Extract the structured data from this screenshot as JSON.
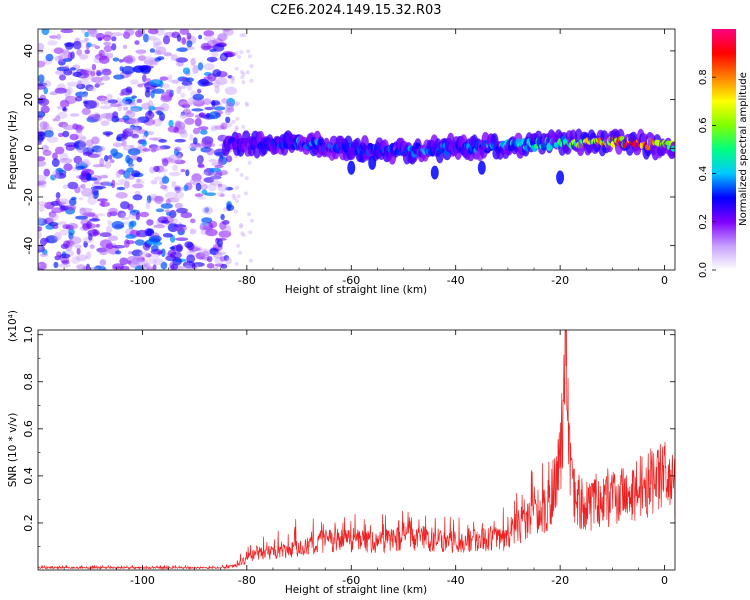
{
  "title": "C2E6.2024.149.15.32.R03",
  "chart_data": [
    {
      "type": "heatmap",
      "xlabel": "Height of straight line (km)",
      "ylabel": "Frequency (Hz)",
      "xlim": [
        -120,
        2
      ],
      "ylim": [
        -50,
        49
      ],
      "xticks": [
        -100,
        -80,
        -60,
        -40,
        -20,
        0
      ],
      "yticks": [
        -40,
        -20,
        0,
        20,
        40
      ],
      "colorbar": {
        "label": "Normalized spectral amplitude",
        "range": [
          0,
          1
        ],
        "ticks": [
          "0.0",
          "0.2",
          "0.4",
          "0.6",
          "0.8"
        ],
        "colors": [
          "#ffffff",
          "#c8a0ff",
          "#8000ff",
          "#0000ff",
          "#00c8ff",
          "#00ff80",
          "#80ff00",
          "#ffff00",
          "#ff8000",
          "#ff0000",
          "#ff0080"
        ]
      },
      "noise_region_x": [
        -120,
        -83
      ],
      "signal_band": {
        "x_range": [
          -84,
          2
        ],
        "center_frequency_hz": [
          {
            "x": -84,
            "f": 2
          },
          {
            "x": -70,
            "f": 2
          },
          {
            "x": -60,
            "f": 0
          },
          {
            "x": -50,
            "f": -1
          },
          {
            "x": -40,
            "f": 0
          },
          {
            "x": -30,
            "f": 1
          },
          {
            "x": -20,
            "f": 2
          },
          {
            "x": -10,
            "f": 3
          },
          {
            "x": 0,
            "f": 1
          }
        ],
        "peak_amplitude": [
          {
            "x": -84,
            "a": 0.25
          },
          {
            "x": -70,
            "a": 0.4
          },
          {
            "x": -60,
            "a": 0.35
          },
          {
            "x": -50,
            "a": 0.4
          },
          {
            "x": -40,
            "a": 0.4
          },
          {
            "x": -30,
            "a": 0.45
          },
          {
            "x": -20,
            "a": 0.55
          },
          {
            "x": -10,
            "a": 0.95
          },
          {
            "x": -3,
            "a": 1.0
          },
          {
            "x": 2,
            "a": 0.6
          }
        ]
      }
    },
    {
      "type": "line",
      "xlabel": "Height of straight line (km)",
      "ylabel": "SNR (10 * v/v)",
      "y_multiplier": "(x10⁴)",
      "xlim": [
        -120,
        2
      ],
      "ylim": [
        0,
        1.02
      ],
      "xticks": [
        -100,
        -80,
        -60,
        -40,
        -20,
        0
      ],
      "yticks": [
        0.2,
        0.4,
        0.6,
        0.8,
        1.0
      ],
      "color": "#ee2222",
      "series": [
        {
          "x": [
            -120,
            -110,
            -100,
            -90,
            -85,
            -82,
            -80,
            -78,
            -75,
            -70,
            -65,
            -60,
            -55,
            -50,
            -45,
            -40,
            -35,
            -30,
            -28,
            -25,
            -22,
            -21,
            -20,
            -19.5,
            -19,
            -18.5,
            -18,
            -17,
            -15,
            -12,
            -10,
            -8,
            -5,
            -3,
            0,
            2
          ],
          "y": [
            0.01,
            0.01,
            0.01,
            0.01,
            0.01,
            0.02,
            0.05,
            0.08,
            0.08,
            0.1,
            0.13,
            0.14,
            0.13,
            0.15,
            0.14,
            0.13,
            0.14,
            0.15,
            0.2,
            0.25,
            0.3,
            0.4,
            0.5,
            0.68,
            1.02,
            0.65,
            0.45,
            0.32,
            0.3,
            0.3,
            0.32,
            0.34,
            0.37,
            0.4,
            0.42,
            0.4
          ],
          "envelope": [
            0.02,
            0.02,
            0.02,
            0.02,
            0.02,
            0.04,
            0.12,
            0.14,
            0.15,
            0.24,
            0.26,
            0.24,
            0.25,
            0.29,
            0.24,
            0.23,
            0.2,
            0.34,
            0.44,
            0.44,
            0.6,
            0.62,
            0.74,
            0.8,
            1.02,
            0.9,
            0.6,
            0.45,
            0.42,
            0.43,
            0.44,
            0.45,
            0.48,
            0.5,
            0.51,
            0.47
          ]
        }
      ]
    }
  ]
}
